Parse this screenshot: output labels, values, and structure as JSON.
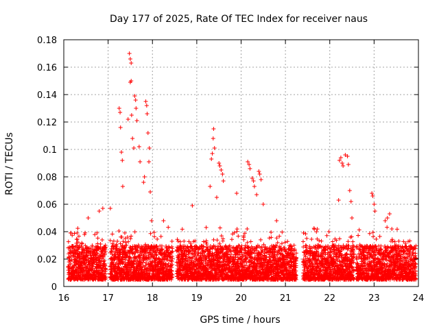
{
  "chart_data": {
    "type": "scatter",
    "title": "Day 177 of 2025, Rate Of TEC Index for receiver naus",
    "xlabel": "GPS time / hours",
    "ylabel": "ROTI / TECUs",
    "xlim": [
      16,
      24
    ],
    "ylim": [
      0,
      0.18
    ],
    "x_ticks": [
      "16",
      "17",
      "18",
      "19",
      "20",
      "21",
      "22",
      "23",
      "24"
    ],
    "y_ticks": [
      "0",
      "0.02",
      "0.04",
      "0.06",
      "0.08",
      "0.1",
      "0.12",
      "0.14",
      "0.16",
      "0.18"
    ],
    "grid": true,
    "marker": "+",
    "color": "#ff0000",
    "series": [
      {
        "name": "ROTI",
        "background": {
          "segments": [
            [
              16.1,
              16.95
            ],
            [
              17.05,
              18.45
            ],
            [
              18.55,
              21.25
            ],
            [
              21.4,
              22.55
            ],
            [
              22.6,
              23.95
            ]
          ],
          "typical_range": [
            0.005,
            0.03
          ],
          "sampling_interval_hours": 0.0083
        },
        "notable_points": [
          [
            16.55,
            0.05
          ],
          [
            16.8,
            0.055
          ],
          [
            16.88,
            0.057
          ],
          [
            17.05,
            0.057
          ],
          [
            17.25,
            0.13
          ],
          [
            17.27,
            0.127
          ],
          [
            17.28,
            0.116
          ],
          [
            17.3,
            0.098
          ],
          [
            17.32,
            0.092
          ],
          [
            17.33,
            0.073
          ],
          [
            17.45,
            0.122
          ],
          [
            17.48,
            0.17
          ],
          [
            17.5,
            0.166
          ],
          [
            17.52,
            0.163
          ],
          [
            17.5,
            0.149
          ],
          [
            17.52,
            0.15
          ],
          [
            17.53,
            0.125
          ],
          [
            17.55,
            0.108
          ],
          [
            17.58,
            0.101
          ],
          [
            17.6,
            0.139
          ],
          [
            17.62,
            0.136
          ],
          [
            17.63,
            0.13
          ],
          [
            17.65,
            0.121
          ],
          [
            17.7,
            0.102
          ],
          [
            17.72,
            0.091
          ],
          [
            17.8,
            0.076
          ],
          [
            17.82,
            0.08
          ],
          [
            17.85,
            0.135
          ],
          [
            17.87,
            0.132
          ],
          [
            17.88,
            0.126
          ],
          [
            17.9,
            0.112
          ],
          [
            17.93,
            0.101
          ],
          [
            17.92,
            0.091
          ],
          [
            17.95,
            0.069
          ],
          [
            17.98,
            0.048
          ],
          [
            18.25,
            0.048
          ],
          [
            18.9,
            0.059
          ],
          [
            19.3,
            0.073
          ],
          [
            19.33,
            0.093
          ],
          [
            19.35,
            0.097
          ],
          [
            19.38,
            0.115
          ],
          [
            19.37,
            0.108
          ],
          [
            19.4,
            0.101
          ],
          [
            19.45,
            0.065
          ],
          [
            19.5,
            0.09
          ],
          [
            19.52,
            0.088
          ],
          [
            19.55,
            0.085
          ],
          [
            19.58,
            0.082
          ],
          [
            19.6,
            0.077
          ],
          [
            19.9,
            0.068
          ],
          [
            20.15,
            0.091
          ],
          [
            20.18,
            0.089
          ],
          [
            20.2,
            0.086
          ],
          [
            20.25,
            0.079
          ],
          [
            20.28,
            0.077
          ],
          [
            20.3,
            0.073
          ],
          [
            20.35,
            0.067
          ],
          [
            20.4,
            0.084
          ],
          [
            20.42,
            0.082
          ],
          [
            20.45,
            0.078
          ],
          [
            20.5,
            0.06
          ],
          [
            20.8,
            0.048
          ],
          [
            22.2,
            0.063
          ],
          [
            22.22,
            0.092
          ],
          [
            22.25,
            0.094
          ],
          [
            22.28,
            0.09
          ],
          [
            22.3,
            0.088
          ],
          [
            22.35,
            0.096
          ],
          [
            22.4,
            0.095
          ],
          [
            22.42,
            0.089
          ],
          [
            22.45,
            0.07
          ],
          [
            22.48,
            0.062
          ],
          [
            22.5,
            0.05
          ],
          [
            22.95,
            0.068
          ],
          [
            22.97,
            0.066
          ],
          [
            23.0,
            0.06
          ],
          [
            23.02,
            0.055
          ],
          [
            23.25,
            0.048
          ],
          [
            23.3,
            0.05
          ],
          [
            23.35,
            0.053
          ],
          [
            23.4,
            0.042
          ],
          [
            23.5,
            0.03
          ]
        ]
      }
    ]
  }
}
